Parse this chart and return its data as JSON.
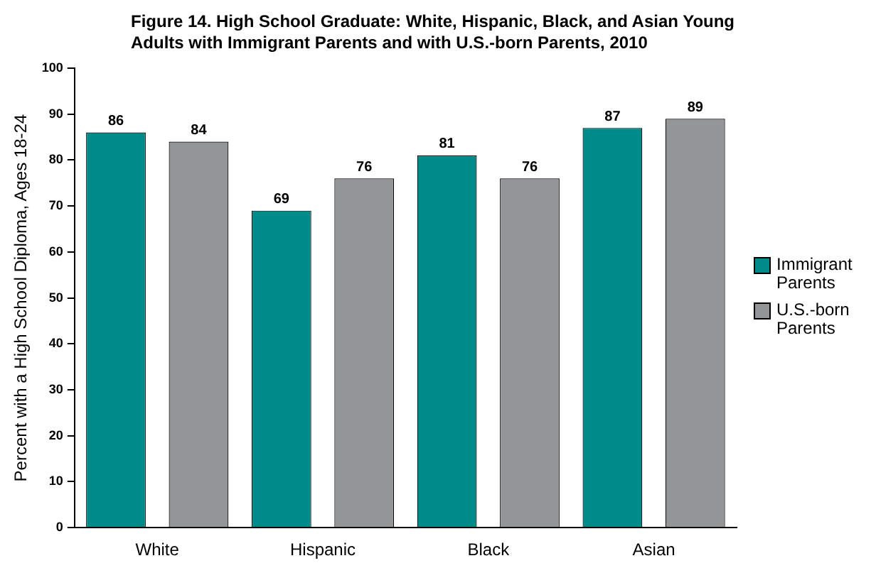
{
  "chart_data": {
    "type": "bar",
    "title": "Figure 14. High School Graduate: White, Hispanic, Black, and Asian Young Adults with Immigrant Parents and with U.S.-born Parents, 2010",
    "ylabel": "Percent with a High School Diploma, Ages 18-24",
    "categories": [
      "White",
      "Hispanic",
      "Black",
      "Asian"
    ],
    "series": [
      {
        "name": "Immigrant Parents",
        "color": "#008b8b",
        "values": [
          86,
          69,
          81,
          87
        ]
      },
      {
        "name": "U.S.-born Parents",
        "color": "#939598",
        "values": [
          84,
          76,
          76,
          89
        ]
      }
    ],
    "ylim": [
      0,
      100
    ],
    "yticks": [
      0,
      10,
      20,
      30,
      40,
      50,
      60,
      70,
      80,
      90,
      100
    ],
    "grid": false,
    "legend": "right",
    "data_labels": true
  }
}
